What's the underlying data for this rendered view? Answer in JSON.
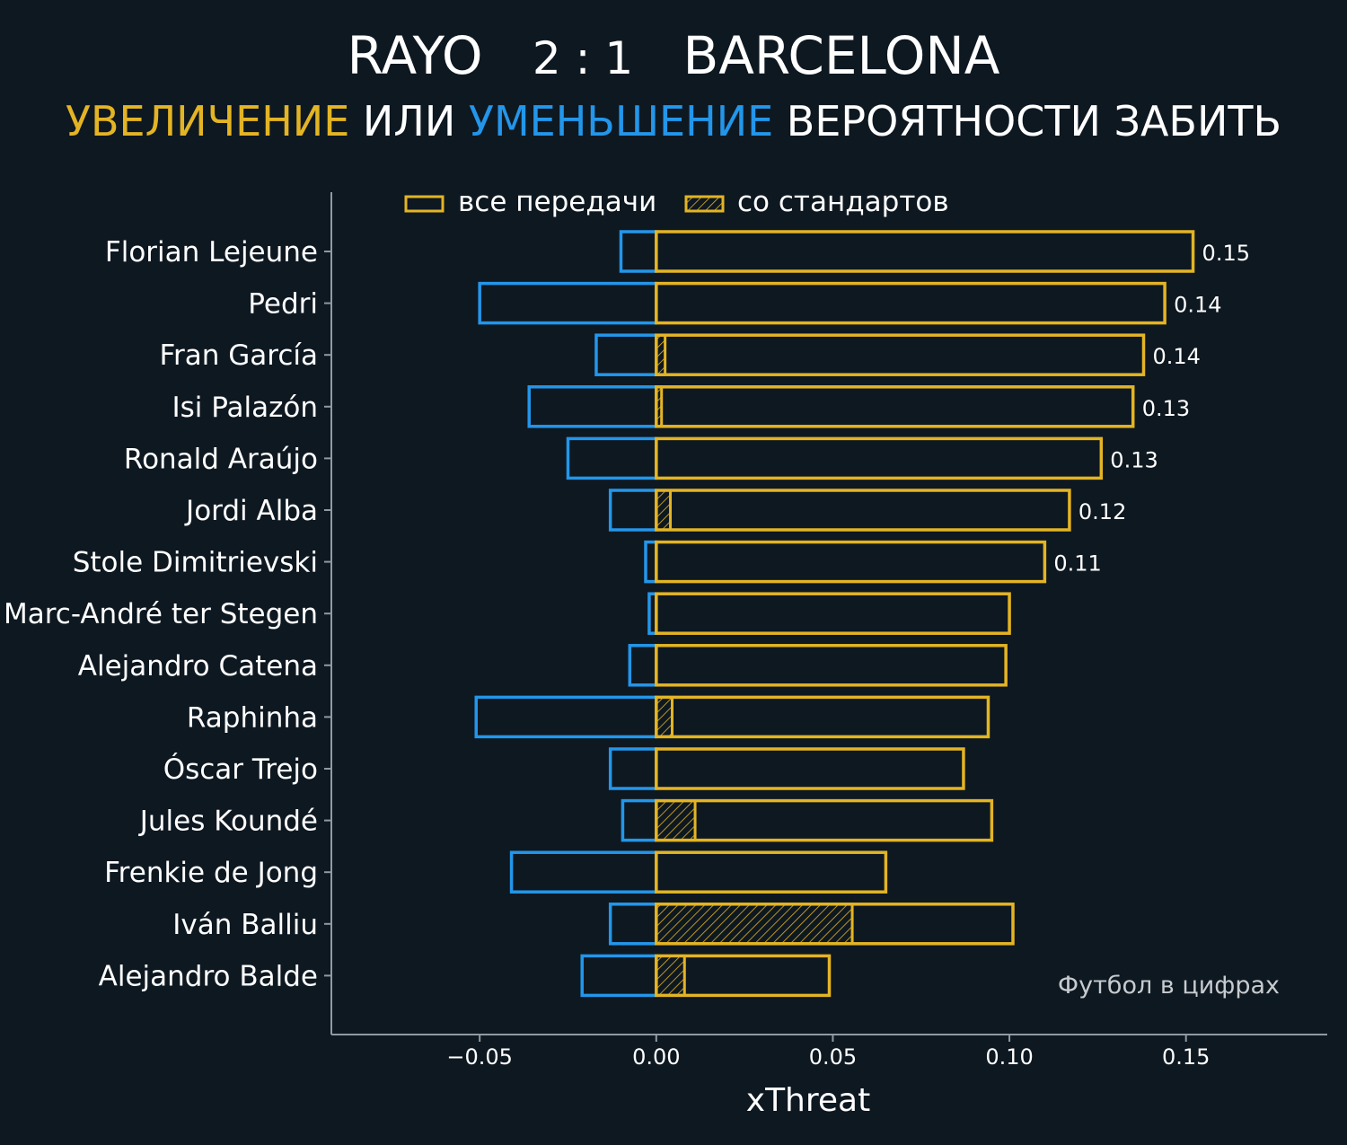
{
  "header": {
    "home_team": "RAYO",
    "score": "2 : 1",
    "away_team": "BARCELONA",
    "subtitle": {
      "part1": "УВЕЛИЧЕНИЕ",
      "part2": " ИЛИ ",
      "part3": "УМЕНЬШЕНИЕ",
      "part4": " ВЕРОЯТНОСТИ ЗАБИТЬ"
    }
  },
  "colors": {
    "background": "#0e1821",
    "increase": "#e3b424",
    "decrease": "#2396ea",
    "axis": "#8f9aa3",
    "text": "#ffffff",
    "watermark": "#c7cbcf"
  },
  "watermark": "Футбол в цифрах",
  "chart_data": {
    "type": "bar",
    "orientation": "horizontal",
    "xlabel": "xThreat",
    "xlim": [
      -0.092,
      0.19
    ],
    "xticks": [
      -0.05,
      0.0,
      0.05,
      0.1,
      0.15
    ],
    "xtick_labels": [
      "−0.05",
      "0.00",
      "0.05",
      "0.10",
      "0.15"
    ],
    "legend": {
      "placement": "top-left",
      "entries": [
        "все передачи",
        "со стандартов"
      ]
    },
    "categories": [
      "Florian Lejeune",
      "Pedri",
      "Fran García",
      "Isi Palazón",
      "Ronald Araújo",
      "Jordi Alba",
      "Stole Dimitrievski",
      "Marc-André ter Stegen",
      "Alejandro Catena",
      "Raphinha",
      "Óscar Trejo",
      "Jules Koundé",
      "Frenkie de Jong",
      "Iván Balliu",
      "Alejandro Balde"
    ],
    "series": [
      {
        "name": "все передачи",
        "values": [
          0.152,
          0.144,
          0.138,
          0.135,
          0.126,
          0.117,
          0.11,
          0.1,
          0.099,
          0.094,
          0.087,
          0.095,
          0.065,
          0.101,
          0.049
        ]
      },
      {
        "name": "со стандартов",
        "values": [
          0.0,
          0.0,
          0.0025,
          0.0015,
          0.0,
          0.004,
          0.0,
          0.0,
          0.0,
          0.0045,
          0.0,
          0.011,
          0.0,
          0.0555,
          0.008
        ]
      },
      {
        "values": [
          -0.01,
          -0.05,
          -0.017,
          -0.036,
          -0.025,
          -0.013,
          -0.003,
          -0.002,
          -0.0075,
          -0.051,
          -0.013,
          -0.0095,
          -0.041,
          -0.013,
          -0.021
        ]
      }
    ],
    "value_labels": [
      "0.15",
      "0.14",
      "0.14",
      "0.13",
      "0.13",
      "0.12",
      "0.11"
    ]
  }
}
